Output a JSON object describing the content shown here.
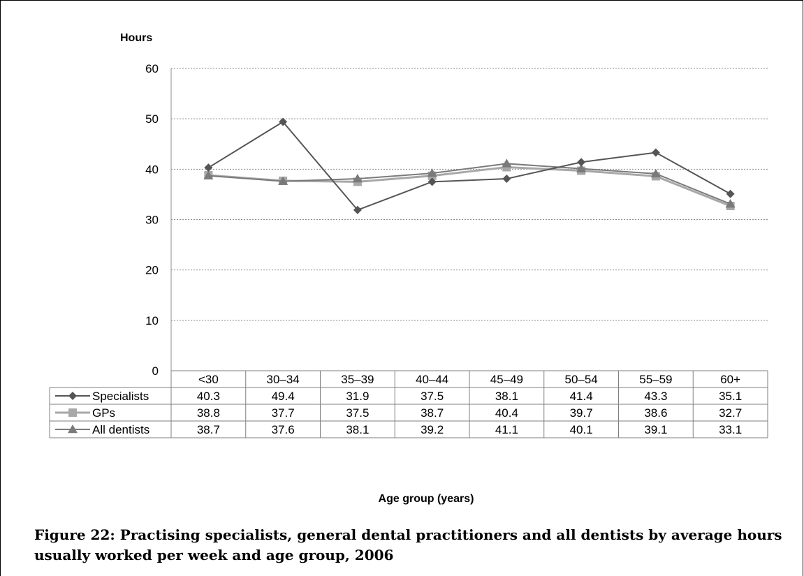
{
  "chart_data": {
    "type": "line",
    "ylabel": "Hours",
    "xlabel": "Age group (years)",
    "ylim": [
      0,
      60
    ],
    "y_ticks": [
      0,
      10,
      20,
      30,
      40,
      50,
      60
    ],
    "grid": "horizontal dotted",
    "legend": "data table rows",
    "categories": [
      "<30",
      "30–34",
      "35–39",
      "40–44",
      "45–49",
      "50–54",
      "55–59",
      "60+"
    ],
    "series": [
      {
        "name": "Specialists",
        "marker": "diamond",
        "color": "#555555",
        "values": [
          40.3,
          49.4,
          31.9,
          37.5,
          38.1,
          41.4,
          43.3,
          35.1
        ]
      },
      {
        "name": "GPs",
        "marker": "square",
        "color": "#a8a8a8",
        "values": [
          38.8,
          37.7,
          37.5,
          38.7,
          40.4,
          39.7,
          38.6,
          32.7
        ]
      },
      {
        "name": "All dentists",
        "marker": "triangle",
        "color": "#7a7a7a",
        "values": [
          38.7,
          37.6,
          38.1,
          39.2,
          41.1,
          40.1,
          39.1,
          33.1
        ]
      }
    ]
  },
  "caption": "Figure 22: Practising specialists, general dental practitioners and all dentists by average hours usually worked per week and age group, 2006"
}
